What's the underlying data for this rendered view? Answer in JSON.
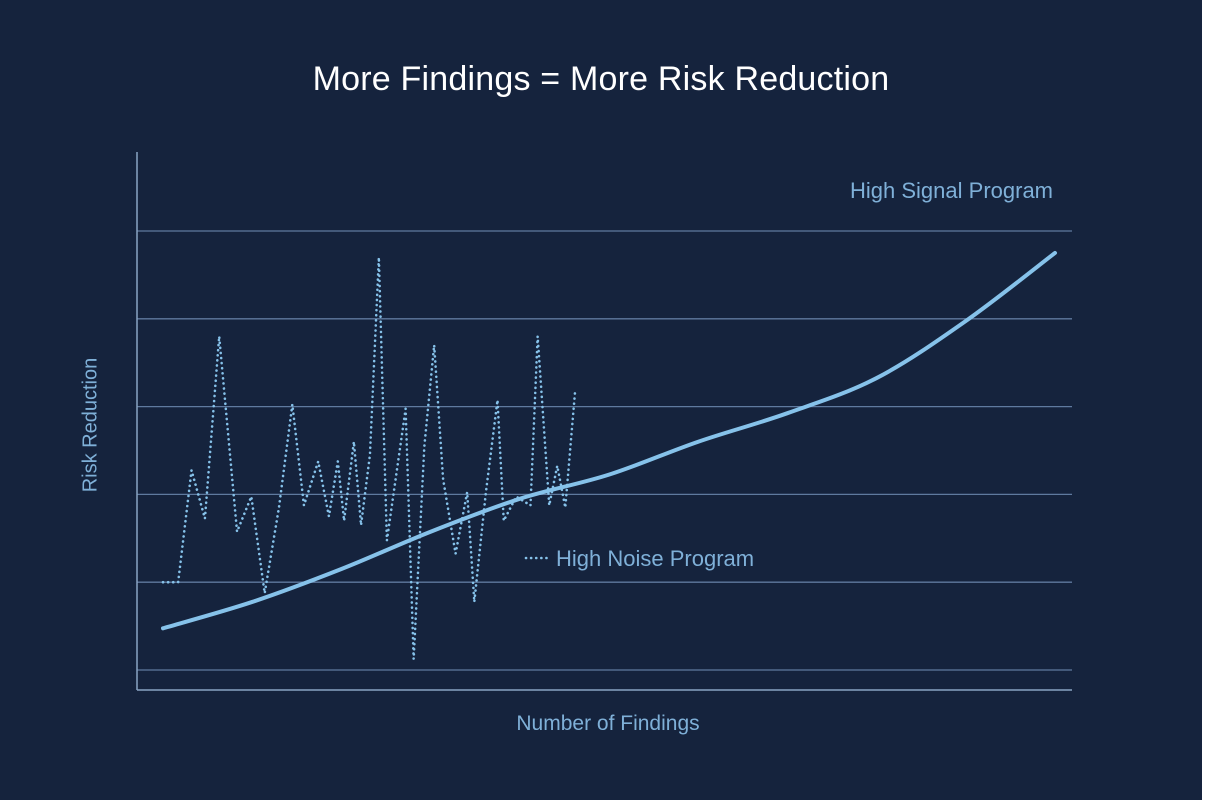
{
  "chart_data": {
    "type": "line",
    "title": "More Findings = More Risk Reduction",
    "xlabel": "Number of Findings",
    "ylabel": "Risk Reduction",
    "xlim": [
      0,
      100
    ],
    "ylim": [
      0,
      100
    ],
    "grid": "horizontal",
    "colors": {
      "background": "#15233d",
      "line": "#86c2ea",
      "grid": "#5f7a9f",
      "axis": "#8aa4c4",
      "label": "#7fb0d8",
      "title": "#ffffff"
    },
    "series": [
      {
        "name": "High Signal Program",
        "style": "solid",
        "x": [
          0,
          10,
          20,
          30,
          40,
          50,
          60,
          70,
          80,
          90,
          100
        ],
        "y": [
          9.5,
          15.5,
          23,
          31.5,
          39,
          44.5,
          52,
          58.5,
          66.5,
          79.5,
          95
        ]
      },
      {
        "name": "High Noise Program",
        "style": "dotted",
        "x": [
          0,
          1.7,
          3.2,
          4.7,
          6.3,
          8.3,
          9.9,
          11.4,
          13.0,
          14.5,
          15.8,
          17.4,
          18.6,
          19.6,
          20.3,
          21.4,
          22.2,
          23.2,
          24.2,
          25.1,
          27.2,
          28.1,
          29.3,
          30.4,
          31.4,
          32.8,
          34.1,
          34.9,
          36.2,
          37.5,
          38.2,
          39.6,
          41.2,
          42.0,
          43.3,
          44.2,
          45.1,
          46.2
        ],
        "y": [
          20,
          20,
          45.5,
          34.5,
          76,
          31.5,
          39.5,
          17.5,
          37,
          60.5,
          37.5,
          47.5,
          35,
          47.5,
          34,
          52,
          33,
          49,
          94,
          29.5,
          59.5,
          2.5,
          51,
          74,
          43.5,
          26.5,
          40.5,
          15.5,
          40.5,
          61.5,
          34,
          39.5,
          37.5,
          76,
          37.5,
          46.5,
          37,
          63.5
        ]
      }
    ],
    "annotations": [
      {
        "text": "High Signal Program",
        "target": "High Signal Program"
      },
      {
        "text": "High Noise Program",
        "target": "High Noise Program"
      }
    ]
  }
}
